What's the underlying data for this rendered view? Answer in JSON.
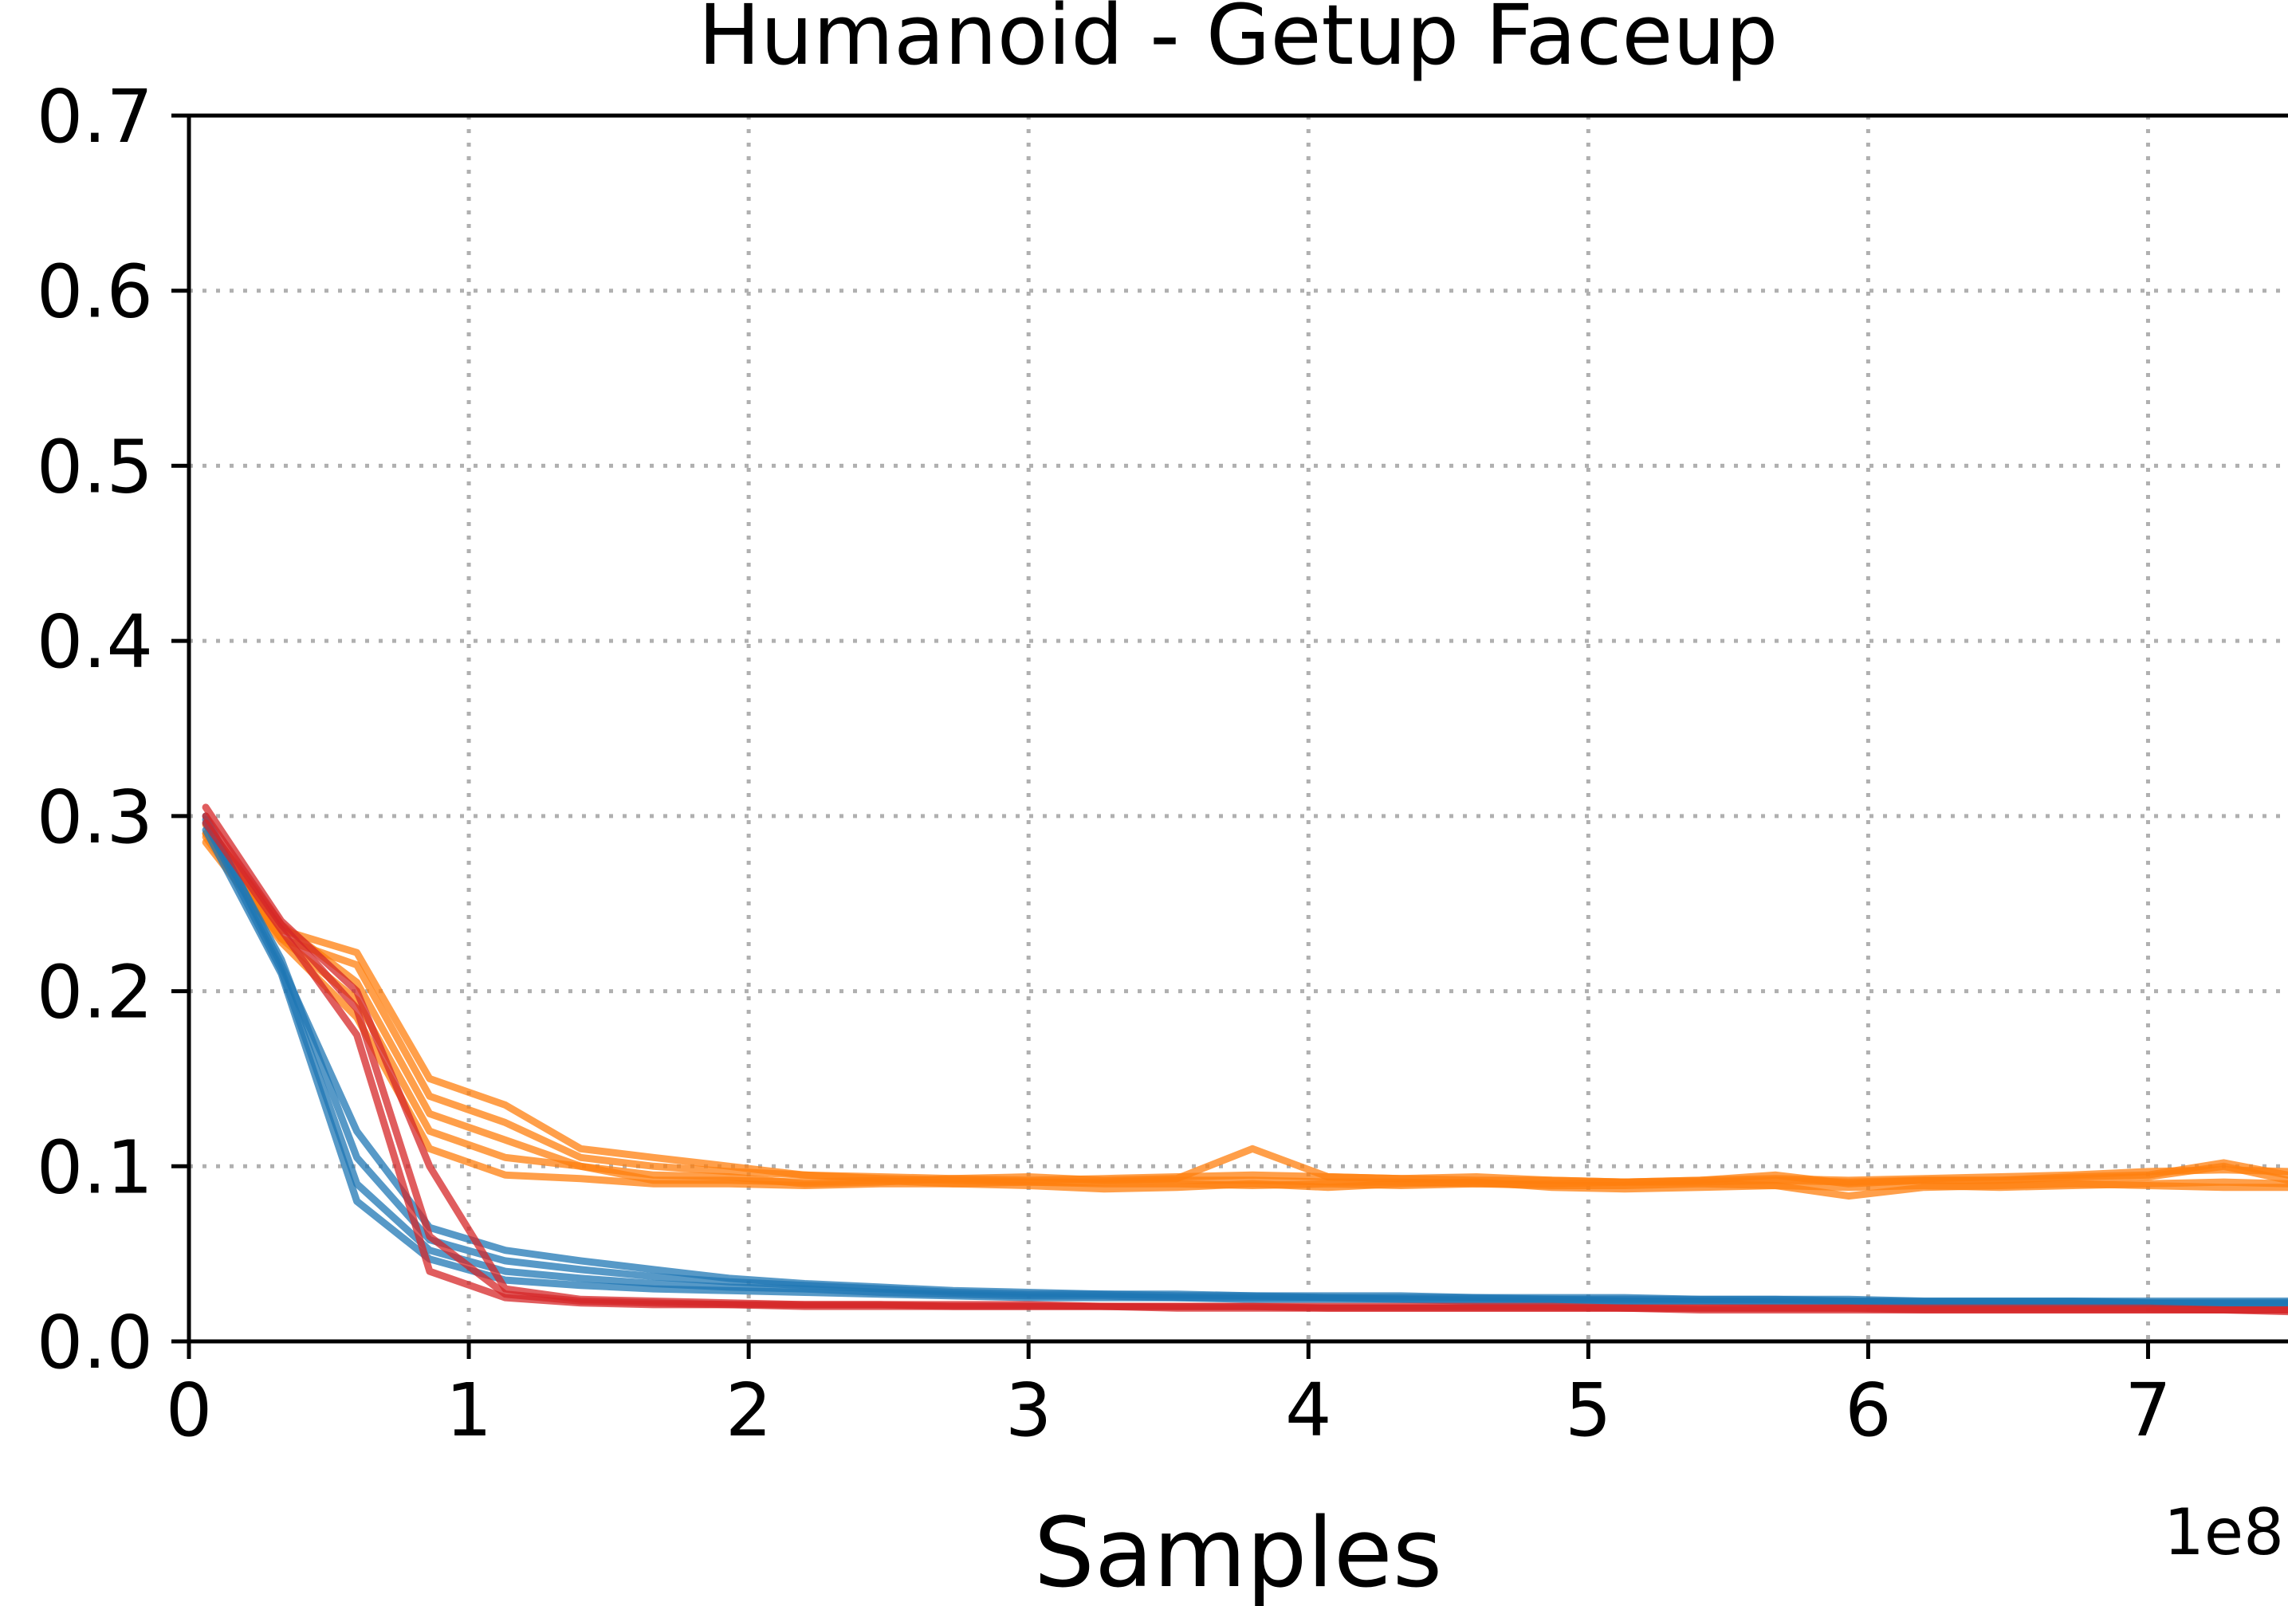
{
  "chart_data": {
    "type": "line",
    "title": "Humanoid - Getup Faceup",
    "xlabel": "Samples",
    "ylabel": "",
    "x_offset_label": "1e8",
    "xlim": [
      0,
      7.5
    ],
    "ylim": [
      0,
      0.7
    ],
    "xticks": [
      0,
      1,
      2,
      3,
      4,
      5,
      6,
      7
    ],
    "yticks": [
      0.0,
      0.1,
      0.2,
      0.3,
      0.4,
      0.5,
      0.6,
      0.7
    ],
    "xtick_labels": [
      "0",
      "1",
      "2",
      "3",
      "4",
      "5",
      "6",
      "7"
    ],
    "ytick_labels": [
      "0.0",
      "0.1",
      "0.2",
      "0.3",
      "0.4",
      "0.5",
      "0.6",
      "0.7"
    ],
    "grid": true,
    "x": [
      0.06,
      0.33,
      0.6,
      0.86,
      1.13,
      1.4,
      1.66,
      1.93,
      2.2,
      2.47,
      2.73,
      3.0,
      3.27,
      3.53,
      3.8,
      4.07,
      4.33,
      4.6,
      4.87,
      5.13,
      5.4,
      5.67,
      5.93,
      6.2,
      6.47,
      6.73,
      7.0,
      7.27,
      7.5
    ],
    "series": [
      {
        "color": "#ff7f0e",
        "values": [
          0.29,
          0.235,
          0.222,
          0.15,
          0.135,
          0.11,
          0.105,
          0.1,
          0.095,
          0.094,
          0.093,
          0.092,
          0.093,
          0.094,
          0.095,
          0.094,
          0.093,
          0.092,
          0.092,
          0.091,
          0.092,
          0.093,
          0.092,
          0.093,
          0.094,
          0.095,
          0.097,
          0.098,
          0.097
        ]
      },
      {
        "color": "#ff7f0e",
        "values": [
          0.285,
          0.23,
          0.215,
          0.14,
          0.125,
          0.105,
          0.1,
          0.097,
          0.095,
          0.093,
          0.092,
          0.091,
          0.091,
          0.092,
          0.092,
          0.091,
          0.091,
          0.09,
          0.09,
          0.091,
          0.091,
          0.092,
          0.091,
          0.092,
          0.092,
          0.093,
          0.094,
          0.1,
          0.092
        ]
      },
      {
        "color": "#ff7f0e",
        "values": [
          0.295,
          0.238,
          0.205,
          0.13,
          0.115,
          0.1,
          0.095,
          0.094,
          0.09,
          0.091,
          0.093,
          0.094,
          0.092,
          0.093,
          0.11,
          0.094,
          0.093,
          0.094,
          0.092,
          0.091,
          0.092,
          0.095,
          0.09,
          0.092,
          0.092,
          0.094,
          0.095,
          0.102,
          0.095
        ]
      },
      {
        "color": "#ff7f0e",
        "values": [
          0.29,
          0.23,
          0.195,
          0.12,
          0.105,
          0.1,
          0.092,
          0.092,
          0.091,
          0.092,
          0.09,
          0.089,
          0.087,
          0.088,
          0.09,
          0.088,
          0.09,
          0.091,
          0.088,
          0.087,
          0.088,
          0.089,
          0.088,
          0.089,
          0.088,
          0.089,
          0.09,
          0.091,
          0.09
        ]
      },
      {
        "color": "#ff7f0e",
        "values": [
          0.288,
          0.228,
          0.185,
          0.11,
          0.095,
          0.093,
          0.09,
          0.09,
          0.089,
          0.09,
          0.09,
          0.091,
          0.09,
          0.09,
          0.089,
          0.09,
          0.089,
          0.09,
          0.089,
          0.089,
          0.09,
          0.089,
          0.083,
          0.088,
          0.089,
          0.09,
          0.089,
          0.088,
          0.088
        ]
      },
      {
        "color": "#1f77b4",
        "values": [
          0.3,
          0.215,
          0.12,
          0.065,
          0.052,
          0.046,
          0.041,
          0.036,
          0.033,
          0.031,
          0.029,
          0.028,
          0.027,
          0.027,
          0.026,
          0.026,
          0.026,
          0.025,
          0.025,
          0.025,
          0.024,
          0.024,
          0.024,
          0.023,
          0.023,
          0.023,
          0.023,
          0.023,
          0.023
        ]
      },
      {
        "color": "#1f77b4",
        "values": [
          0.298,
          0.218,
          0.105,
          0.058,
          0.046,
          0.041,
          0.037,
          0.034,
          0.032,
          0.03,
          0.028,
          0.027,
          0.027,
          0.026,
          0.026,
          0.025,
          0.025,
          0.025,
          0.024,
          0.024,
          0.024,
          0.024,
          0.023,
          0.023,
          0.023,
          0.023,
          0.022,
          0.022,
          0.022
        ]
      },
      {
        "color": "#1f77b4",
        "values": [
          0.296,
          0.212,
          0.09,
          0.052,
          0.04,
          0.036,
          0.033,
          0.031,
          0.03,
          0.028,
          0.027,
          0.026,
          0.026,
          0.025,
          0.025,
          0.025,
          0.024,
          0.024,
          0.024,
          0.023,
          0.023,
          0.023,
          0.023,
          0.022,
          0.022,
          0.022,
          0.022,
          0.022,
          0.022
        ]
      },
      {
        "color": "#1f77b4",
        "values": [
          0.292,
          0.21,
          0.08,
          0.047,
          0.035,
          0.032,
          0.03,
          0.029,
          0.028,
          0.027,
          0.026,
          0.025,
          0.025,
          0.025,
          0.024,
          0.024,
          0.024,
          0.023,
          0.023,
          0.023,
          0.023,
          0.022,
          0.022,
          0.022,
          0.022,
          0.022,
          0.022,
          0.021,
          0.021
        ]
      },
      {
        "color": "#d62728",
        "values": [
          0.305,
          0.24,
          0.2,
          0.1,
          0.03,
          0.024,
          0.023,
          0.022,
          0.021,
          0.021,
          0.021,
          0.021,
          0.02,
          0.02,
          0.02,
          0.02,
          0.02,
          0.02,
          0.02,
          0.019,
          0.019,
          0.019,
          0.019,
          0.019,
          0.019,
          0.019,
          0.019,
          0.018,
          0.018
        ]
      },
      {
        "color": "#d62728",
        "values": [
          0.3,
          0.238,
          0.19,
          0.06,
          0.027,
          0.023,
          0.022,
          0.021,
          0.021,
          0.021,
          0.02,
          0.02,
          0.02,
          0.02,
          0.02,
          0.019,
          0.019,
          0.019,
          0.019,
          0.019,
          0.019,
          0.019,
          0.019,
          0.018,
          0.018,
          0.018,
          0.018,
          0.018,
          0.018
        ]
      },
      {
        "color": "#d62728",
        "values": [
          0.296,
          0.235,
          0.175,
          0.04,
          0.025,
          0.022,
          0.021,
          0.021,
          0.02,
          0.02,
          0.02,
          0.02,
          0.02,
          0.019,
          0.019,
          0.019,
          0.019,
          0.019,
          0.019,
          0.019,
          0.018,
          0.018,
          0.018,
          0.018,
          0.018,
          0.018,
          0.018,
          0.018,
          0.017
        ]
      }
    ]
  }
}
